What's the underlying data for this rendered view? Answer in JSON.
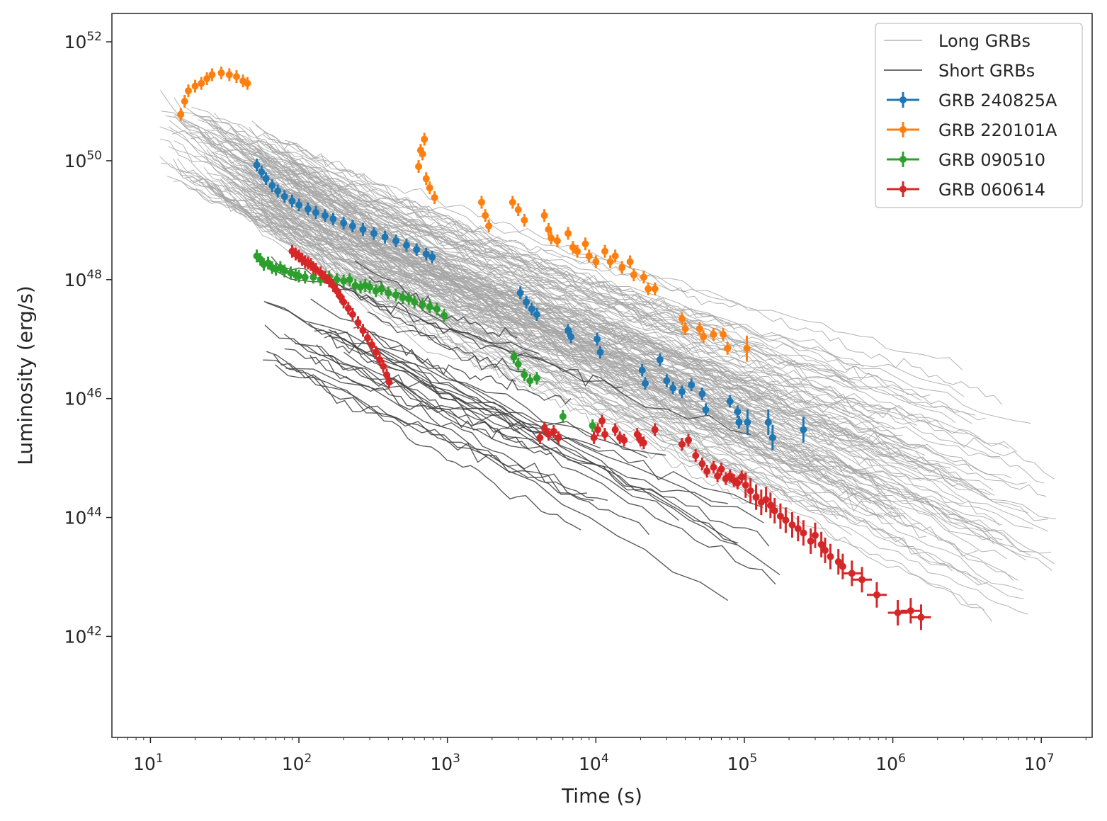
{
  "chart_data": {
    "type": "line",
    "xlabel": "Time (s)",
    "ylabel": "Luminosity (erg/s)",
    "xscale": "log",
    "yscale": "log",
    "xlim": [
      5.5,
      22000000
    ],
    "ylim": [
      2e+40,
      3e+52
    ],
    "x_ticks": [
      {
        "value": 10,
        "base": "10",
        "exp": "1"
      },
      {
        "value": 100,
        "base": "10",
        "exp": "2"
      },
      {
        "value": 1000,
        "base": "10",
        "exp": "3"
      },
      {
        "value": 10000,
        "base": "10",
        "exp": "4"
      },
      {
        "value": 100000,
        "base": "10",
        "exp": "5"
      },
      {
        "value": 1000000,
        "base": "10",
        "exp": "6"
      },
      {
        "value": 10000000,
        "base": "10",
        "exp": "7"
      }
    ],
    "y_ticks": [
      {
        "value": 1e+42,
        "base": "10",
        "exp": "42"
      },
      {
        "value": 1e+44,
        "base": "10",
        "exp": "44"
      },
      {
        "value": 1e+46,
        "base": "10",
        "exp": "46"
      },
      {
        "value": 1e+48,
        "base": "10",
        "exp": "48"
      },
      {
        "value": 1e+50,
        "base": "10",
        "exp": "50"
      },
      {
        "value": 1e+52,
        "base": "10",
        "exp": "52"
      }
    ],
    "grid": false,
    "legend_position": "top-right",
    "series": [
      {
        "name": "Long GRBs",
        "kind": "background-lines",
        "color": "#a6a6a6",
        "count": 160,
        "envelope": "upper bound ~4e50 at 30 s falling to ~1e45 at 1e7 s; bulk ~3e50 at 20 s to ~1e46 at 1e5 s"
      },
      {
        "name": "Short GRBs",
        "kind": "background-lines",
        "color": "#404040",
        "count": 30,
        "envelope": "~1e48 at 70 s falling to ~1e43 at 1e5 s"
      },
      {
        "name": "GRB 240825A",
        "color": "#1f77b4",
        "points": [
          [
            52,
            8.5e+49
          ],
          [
            56,
            6.5e+49
          ],
          [
            60,
            5e+49
          ],
          [
            66,
            3.8e+49
          ],
          [
            72,
            3.1e+49
          ],
          [
            80,
            2.5e+49
          ],
          [
            90,
            2.1e+49
          ],
          [
            100,
            1.8e+49
          ],
          [
            115,
            1.55e+49
          ],
          [
            130,
            1.35e+49
          ],
          [
            150,
            1.2e+49
          ],
          [
            170,
            1.05e+49
          ],
          [
            200,
            9e+48
          ],
          [
            230,
            8e+48
          ],
          [
            270,
            7e+48
          ],
          [
            320,
            6e+48
          ],
          [
            380,
            5.2e+48
          ],
          [
            450,
            4.5e+48
          ],
          [
            530,
            3.8e+48
          ],
          [
            620,
            3.2e+48
          ],
          [
            720,
            2.7e+48
          ],
          [
            790,
            2.4e+48
          ],
          [
            3100,
            6e+47
          ],
          [
            3400,
            4.2e+47
          ],
          [
            3700,
            3.2e+47
          ],
          [
            4000,
            2.6e+47
          ],
          [
            6500,
            1.4e+47
          ],
          [
            6800,
            1.1e+47
          ],
          [
            10200,
            1e+47
          ],
          [
            10700,
            6e+46
          ],
          [
            20500,
            3e+46
          ],
          [
            21500,
            1.8e+46
          ],
          [
            27000,
            4.5e+46
          ],
          [
            30000,
            2e+46
          ],
          [
            33000,
            1.5e+46
          ],
          [
            38000,
            1.3e+46
          ],
          [
            44000,
            1.7e+46
          ],
          [
            52000,
            1.2e+46
          ],
          [
            55000,
            6.5e+45
          ],
          [
            80000,
            9e+45
          ],
          [
            90000,
            6e+45
          ],
          [
            92000,
            4e+45
          ],
          [
            105000,
            4e+45
          ],
          [
            145000,
            4e+45
          ],
          [
            155000,
            2.2e+45
          ],
          [
            250000,
            3e+45
          ]
        ]
      },
      {
        "name": "GRB 220101A",
        "color": "#ff7f0e",
        "points": [
          [
            16,
            6e+50
          ],
          [
            17,
            1e+51
          ],
          [
            18,
            1.5e+51
          ],
          [
            20,
            1.8e+51
          ],
          [
            22,
            2e+51
          ],
          [
            24,
            2.4e+51
          ],
          [
            26,
            2.8e+51
          ],
          [
            30,
            3e+51
          ],
          [
            34,
            2.8e+51
          ],
          [
            38,
            2.6e+51
          ],
          [
            42,
            2.2e+51
          ],
          [
            45,
            2e+51
          ],
          [
            640,
            8e+49
          ],
          [
            660,
            1.5e+50
          ],
          [
            680,
            1.3e+50
          ],
          [
            700,
            2.3e+50
          ],
          [
            720,
            5e+49
          ],
          [
            760,
            3.5e+49
          ],
          [
            820,
            2.4e+49
          ],
          [
            1700,
            2e+49
          ],
          [
            1800,
            1.2e+49
          ],
          [
            1900,
            8e+48
          ],
          [
            2750,
            2e+49
          ],
          [
            3000,
            1.5e+49
          ],
          [
            3300,
            1e+49
          ],
          [
            4500,
            1.2e+49
          ],
          [
            4800,
            7e+48
          ],
          [
            5000,
            5e+48
          ],
          [
            5500,
            4.5e+48
          ],
          [
            6500,
            6e+48
          ],
          [
            7000,
            3.5e+48
          ],
          [
            7500,
            3e+48
          ],
          [
            8500,
            4e+48
          ],
          [
            9000,
            2.5e+48
          ],
          [
            10000,
            2e+48
          ],
          [
            11500,
            3e+48
          ],
          [
            12500,
            2e+48
          ],
          [
            13500,
            2.5e+48
          ],
          [
            15000,
            1.6e+48
          ],
          [
            17000,
            2e+48
          ],
          [
            18000,
            1.2e+48
          ],
          [
            21000,
            1.1e+48
          ],
          [
            22500,
            7e+47
          ],
          [
            25000,
            7e+47
          ],
          [
            38000,
            2.2e+47
          ],
          [
            40000,
            1.5e+47
          ],
          [
            50000,
            1.5e+47
          ],
          [
            53000,
            1.1e+47
          ],
          [
            62000,
            1.2e+47
          ],
          [
            72000,
            1.2e+47
          ],
          [
            77000,
            7e+46
          ],
          [
            104000,
            7e+46
          ]
        ]
      },
      {
        "name": "GRB 090510",
        "color": "#2ca02c",
        "points": [
          [
            52,
            2.5e+48
          ],
          [
            55,
            2.2e+48
          ],
          [
            58,
            1.8e+48
          ],
          [
            62,
            1.9e+48
          ],
          [
            66,
            1.6e+48
          ],
          [
            70,
            1.5e+48
          ],
          [
            75,
            1.6e+48
          ],
          [
            80,
            1.4e+48
          ],
          [
            88,
            1.3e+48
          ],
          [
            95,
            1.2e+48
          ],
          [
            100,
            1.15e+48
          ],
          [
            110,
            1.1e+48
          ],
          [
            125,
            1.1e+48
          ],
          [
            140,
            1e+48
          ],
          [
            160,
            1.1e+48
          ],
          [
            180,
            1e+48
          ],
          [
            200,
            9.5e+47
          ],
          [
            220,
            1e+48
          ],
          [
            240,
            8e+47
          ],
          [
            260,
            7.5e+47
          ],
          [
            280,
            8e+47
          ],
          [
            300,
            7.5e+47
          ],
          [
            330,
            6.5e+47
          ],
          [
            360,
            7e+47
          ],
          [
            400,
            6e+47
          ],
          [
            450,
            5.5e+47
          ],
          [
            500,
            5e+47
          ],
          [
            550,
            4.8e+47
          ],
          [
            600,
            4.2e+47
          ],
          [
            680,
            3.8e+47
          ],
          [
            760,
            3.5e+47
          ],
          [
            850,
            3.2e+47
          ],
          [
            950,
            2.5e+47
          ],
          [
            2800,
            5e+46
          ],
          [
            3000,
            3.8e+46
          ],
          [
            3300,
            2.5e+46
          ],
          [
            3600,
            2e+46
          ],
          [
            4000,
            2.2e+46
          ],
          [
            6000,
            5e+45
          ],
          [
            9500,
            3.5e+45
          ]
        ]
      },
      {
        "name": "GRB 060614",
        "color": "#d62728",
        "points": [
          [
            90,
            3e+48
          ],
          [
            95,
            2.7e+48
          ],
          [
            100,
            2.5e+48
          ],
          [
            105,
            2.2e+48
          ],
          [
            110,
            2e+48
          ],
          [
            115,
            1.9e+48
          ],
          [
            120,
            1.8e+48
          ],
          [
            125,
            1.6e+48
          ],
          [
            130,
            1.5e+48
          ],
          [
            140,
            1.3e+48
          ],
          [
            150,
            1.1e+48
          ],
          [
            160,
            9.5e+47
          ],
          [
            170,
            8e+47
          ],
          [
            180,
            6.5e+47
          ],
          [
            190,
            5.2e+47
          ],
          [
            200,
            4.2e+47
          ],
          [
            215,
            3.3e+47
          ],
          [
            230,
            2.6e+47
          ],
          [
            250,
            1.9e+47
          ],
          [
            270,
            1.4e+47
          ],
          [
            290,
            1.05e+47
          ],
          [
            310,
            8e+46
          ],
          [
            330,
            6e+46
          ],
          [
            350,
            4.5e+46
          ],
          [
            370,
            3.5e+46
          ],
          [
            390,
            2.5e+46
          ],
          [
            405,
            1.9e+46
          ],
          [
            4200,
            2.2e+45
          ],
          [
            4500,
            3.2e+45
          ],
          [
            4800,
            2.5e+45
          ],
          [
            5200,
            2.8e+45
          ],
          [
            5600,
            2.2e+45
          ],
          [
            9700,
            2.2e+45
          ],
          [
            10300,
            3e+45
          ],
          [
            11000,
            4.2e+45
          ],
          [
            11500,
            2.5e+45
          ],
          [
            13500,
            3e+45
          ],
          [
            14500,
            2.2e+45
          ],
          [
            15500,
            2e+45
          ],
          [
            19000,
            2.5e+45
          ],
          [
            20000,
            2e+45
          ],
          [
            21000,
            1.8e+45
          ],
          [
            25000,
            3e+45
          ],
          [
            38000,
            1.7e+45
          ],
          [
            42000,
            2e+45
          ],
          [
            47000,
            1.1e+45
          ],
          [
            52000,
            8e+44
          ],
          [
            56000,
            6e+44
          ],
          [
            62000,
            7e+44
          ],
          [
            66000,
            5e+44
          ],
          [
            70000,
            6.5e+44
          ],
          [
            75000,
            4.5e+44
          ],
          [
            80000,
            5e+44
          ],
          [
            85000,
            4.2e+44
          ],
          [
            90000,
            3.8e+44
          ],
          [
            96000,
            4.8e+44
          ],
          [
            102000,
            3.5e+44
          ],
          [
            110000,
            2.8e+44
          ],
          [
            120000,
            2.2e+44
          ],
          [
            130000,
            1.8e+44
          ],
          [
            140000,
            2e+44
          ],
          [
            150000,
            1.6e+44
          ],
          [
            160000,
            1.3e+44
          ],
          [
            175000,
            1.05e+44
          ],
          [
            190000,
            9e+43
          ],
          [
            210000,
            7.5e+43
          ],
          [
            230000,
            6.5e+43
          ],
          [
            250000,
            5.5e+43
          ],
          [
            280000,
            4e+43
          ],
          [
            300000,
            5e+43
          ],
          [
            330000,
            3.5e+43
          ],
          [
            350000,
            2.8e+43
          ],
          [
            380000,
            2.2e+43
          ],
          [
            430000,
            1.8e+43
          ],
          [
            460000,
            1.5e+43
          ],
          [
            530000,
            1.15e+43
          ],
          [
            620000,
            9e+42
          ],
          [
            780000,
            5e+42
          ],
          [
            1080000,
            2.5e+42
          ],
          [
            1320000,
            2.7e+42
          ],
          [
            1550000,
            2.1e+42
          ]
        ]
      }
    ]
  }
}
